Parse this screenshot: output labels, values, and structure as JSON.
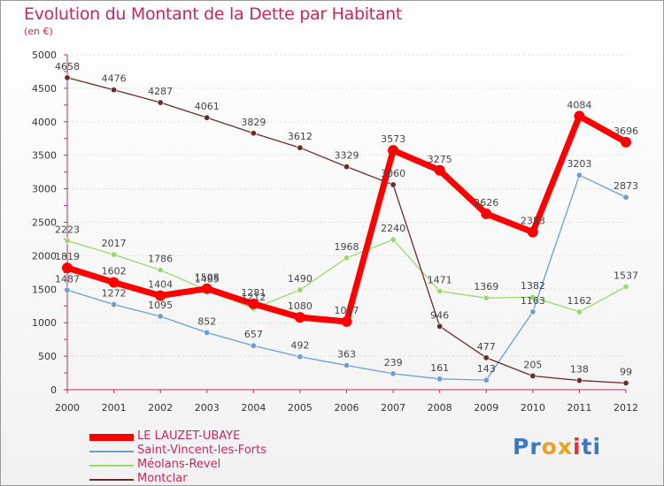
{
  "title": "Evolution du Montant de la Dette par Habitant",
  "subtitle": "(en €)",
  "logo": [
    "P",
    "r",
    "o",
    "x",
    "i",
    "t",
    "i"
  ],
  "colors": {
    "title": "#c8285a",
    "axis": "#c8285a",
    "grid": "#dddddd",
    "logo": [
      "#3a78c8",
      "#3a78c8",
      "#f0a020",
      "#f0a020",
      "#e83030",
      "#3a78c8",
      "#3a78c8"
    ]
  },
  "chart_data": {
    "type": "line",
    "x": [
      "2000",
      "2001",
      "2002",
      "2003",
      "2004",
      "2005",
      "2006",
      "2007",
      "2008",
      "2009",
      "2010",
      "2011",
      "2012"
    ],
    "ylim": [
      0,
      5000
    ],
    "yticks": [
      "0",
      "500",
      "1000",
      "1500",
      "2000",
      "2500",
      "3000",
      "3500",
      "4000",
      "4500",
      "5000"
    ],
    "grid": true,
    "legend_position": "bottom-left",
    "series": [
      {
        "name": "LE LAUZET-UBAYE",
        "color": "#ff0000",
        "values": [
          1819,
          1602,
          1404,
          1508,
          1281,
          1080,
          1017,
          3573,
          3275,
          2626,
          2353,
          4084,
          3696
        ]
      },
      {
        "name": "Saint-Vincent-les-Forts",
        "color": "#6a9fd0",
        "values": [
          1487,
          1272,
          1095,
          852,
          657,
          492,
          363,
          239,
          161,
          143,
          1163,
          3203,
          2873
        ]
      },
      {
        "name": "Méolans-Revel",
        "color": "#9bd86a",
        "values": [
          2223,
          2017,
          1786,
          1485,
          1212,
          1490,
          1968,
          2240,
          1471,
          1369,
          1382,
          1162,
          1537
        ]
      },
      {
        "name": "Montclar",
        "color": "#6e2a2a",
        "values": [
          4658,
          4476,
          4287,
          4061,
          3829,
          3612,
          3329,
          3060,
          946,
          477,
          205,
          138,
          99
        ]
      }
    ]
  }
}
